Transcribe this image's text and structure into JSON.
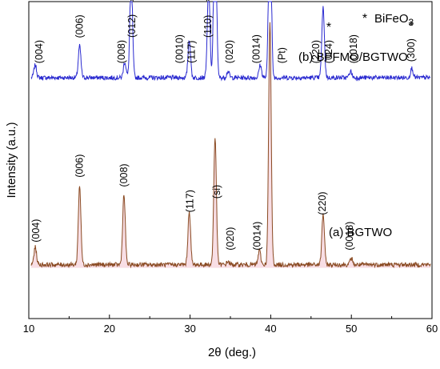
{
  "chart_data": {
    "type": "line",
    "title": "",
    "xlabel": "2θ (deg.)",
    "ylabel": "Intensity (a.u.)",
    "xlim": [
      10,
      60
    ],
    "xticks": [
      10,
      20,
      30,
      40,
      50,
      60
    ],
    "xtick_labels": [
      "10",
      "20",
      "30",
      "40",
      "50",
      "60"
    ],
    "y_ticks_shown": false,
    "grid": false,
    "legend": {
      "marker": "*",
      "text": "BiFeO",
      "subscript": "3",
      "placement": "top-right"
    },
    "series": [
      {
        "name": "(b) BPFMO/BGTWO",
        "color": "#2a2ad0",
        "baseline": 0.76,
        "peaks": [
          [
            10.8,
            0.04
          ],
          [
            16.3,
            0.1
          ],
          [
            21.9,
            0.05
          ],
          [
            22.7,
            0.34
          ],
          [
            29.9,
            0.12
          ],
          [
            32.3,
            0.29
          ],
          [
            33.1,
            0.65
          ],
          [
            34.7,
            0.02
          ],
          [
            38.7,
            0.04
          ],
          [
            39.9,
            0.65
          ],
          [
            46.5,
            0.22
          ],
          [
            49.9,
            0.02
          ],
          [
            57.5,
            0.03
          ]
        ],
        "peak_labels": [
          {
            "label": "(004)",
            "x": 11.3
          },
          {
            "label": "(006)",
            "x": 16.3
          },
          {
            "label": "(008)",
            "x": 21.5
          },
          {
            "label": "(012)",
            "x": 22.8,
            "starred": true
          },
          {
            "label": "(0010)",
            "x": 28.7
          },
          {
            "label": "(117)",
            "x": 30.2
          },
          {
            "label": "(110)",
            "x": 32.2,
            "starred": true
          },
          {
            "label": "(020)",
            "x": 34.9
          },
          {
            "label": "(0014)",
            "x": 38.2
          },
          {
            "label": "(Pt)",
            "x": 41.4
          },
          {
            "label": "(220)",
            "x": 45.6
          },
          {
            "label": "(024)",
            "x": 47.2,
            "starred": true
          },
          {
            "label": "(0018)",
            "x": 50.3
          },
          {
            "label": "(300)",
            "x": 57.4,
            "starred": true
          }
        ],
        "legend_label": "(b) BPFMO/BGTWO"
      },
      {
        "name": "(a) BGTWO",
        "color": "#8a4a22",
        "baseline": 0.17,
        "peaks": [
          [
            10.8,
            0.055
          ],
          [
            16.3,
            0.25
          ],
          [
            21.8,
            0.22
          ],
          [
            29.9,
            0.17
          ],
          [
            33.1,
            0.4
          ],
          [
            34.7,
            0.01
          ],
          [
            38.6,
            0.045
          ],
          [
            39.9,
            0.76
          ],
          [
            46.5,
            0.16
          ],
          [
            50.0,
            0.02
          ]
        ],
        "peak_labels": [
          {
            "label": "(004)",
            "x": 10.9
          },
          {
            "label": "(006)",
            "x": 16.3
          },
          {
            "label": "(008)",
            "x": 21.8
          },
          {
            "label": "(117)",
            "x": 30.0
          },
          {
            "label": "(si)",
            "x": 33.3
          },
          {
            "label": "(020)",
            "x": 35.0
          },
          {
            "label": "(0014)",
            "x": 38.3
          },
          {
            "label": "(220)",
            "x": 46.4
          },
          {
            "label": "(0018)",
            "x": 49.8
          }
        ],
        "legend_label": "(a) BGTWO"
      }
    ]
  },
  "colors": {
    "star": "#a06a28",
    "bgtwo_fill": "#f3c2d0"
  }
}
